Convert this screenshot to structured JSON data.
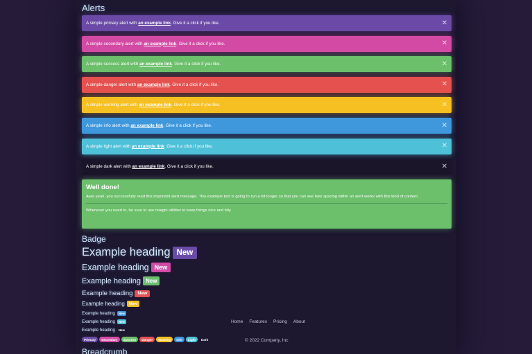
{
  "alerts_title": "Alerts",
  "alerts": [
    {
      "prefix": "A simple primary alert with ",
      "link": "an example link",
      "suffix": ". Give it a click if you like.",
      "color": "#6a4aa6"
    },
    {
      "prefix": "A simple secondary alert with ",
      "link": "an example link",
      "suffix": ". Give it a click if you like.",
      "color": "#d34aa5"
    },
    {
      "prefix": "A simple success alert with ",
      "link": "an example link",
      "suffix": ". Give it a click if you like.",
      "color": "#6cbf6b"
    },
    {
      "prefix": "A simple danger alert with ",
      "link": "an example link",
      "suffix": ". Give it a click if you like.",
      "color": "#e5514f"
    },
    {
      "prefix": "A simple warning alert with ",
      "link": "an example link",
      "suffix": ". Give it a click if you like.",
      "color": "#f6c022"
    },
    {
      "prefix": "A simple info alert with ",
      "link": "an example link",
      "suffix": ". Give it a click if you like.",
      "color": "#3f97dc"
    },
    {
      "prefix": "A simple light alert with ",
      "link": "an example link",
      "suffix": ". Give it a click if you like.",
      "color": "#4ec0d8"
    },
    {
      "prefix": "A simple dark alert with ",
      "link": "an example link",
      "suffix": ". Give it a click if you like.",
      "color": "#1a1528"
    }
  ],
  "close_symbol": "✕",
  "well_done": {
    "heading": "Well done!",
    "body": "Aww yeah, you successfully read this important alert message. This example text is going to run a bit longer so that you can see how spacing within an alert works with this kind of content.",
    "footer": "Whenever you need to, be sure to use margin utilities to keep things nice and tidy."
  },
  "badge_title": "Badge",
  "headings": [
    {
      "text": "Example heading",
      "badge": "New",
      "badge_color": "#6a4aa6"
    },
    {
      "text": "Example heading",
      "badge": "New",
      "badge_color": "#d34aa5"
    },
    {
      "text": "Example heading",
      "badge": "New",
      "badge_color": "#6cbf6b"
    },
    {
      "text": "Example heading",
      "badge": "New",
      "badge_color": "#e5514f"
    },
    {
      "text": "Example heading",
      "badge": "New",
      "badge_color": "#f6c022"
    },
    {
      "text": "Example heading",
      "badge": "New",
      "badge_color": "#3f97dc"
    },
    {
      "text": "Example heading",
      "badge": "New",
      "badge_color": "#4ec0d8"
    },
    {
      "text": "Example heading",
      "badge": "New",
      "badge_color": "#1a1528"
    }
  ],
  "pills": [
    {
      "label": "Primary",
      "color": "#6a4aa6"
    },
    {
      "label": "Secondary",
      "color": "#d34aa5"
    },
    {
      "label": "Success",
      "color": "#6cbf6b"
    },
    {
      "label": "Danger",
      "color": "#e5514f"
    },
    {
      "label": "Warning",
      "color": "#f6c022"
    },
    {
      "label": "Info",
      "color": "#3f97dc"
    },
    {
      "label": "Light",
      "color": "#4ec0d8"
    },
    {
      "label": "Dark",
      "color": "#1d1730"
    }
  ],
  "breadcrumb_title": "Breadcrumb",
  "footer": {
    "nav": [
      "Home",
      "Features",
      "Pricing",
      "About"
    ],
    "copyright": "© 2022 Company, Inc"
  }
}
